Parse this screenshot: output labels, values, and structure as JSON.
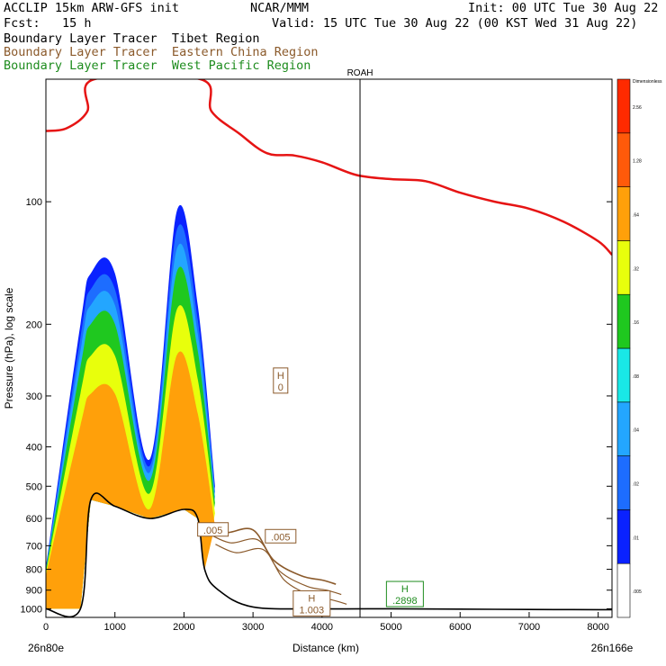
{
  "header": {
    "line1_left": "ACCLIP 15km ARW-GFS init",
    "line1_mid": "NCAR/MMM",
    "line1_right": "Init: 00 UTC Tue 30 Aug 22",
    "line2_left": "Fcst:   15 h",
    "line2_right": "Valid: 15 UTC Tue 30 Aug 22 (00 KST Wed 31 Aug 22)",
    "tracer_lines": [
      {
        "label": "Boundary Layer Tracer  Tibet Region",
        "color": "#000000"
      },
      {
        "label": "Boundary Layer Tracer  Eastern China Region",
        "color": "#8b5a2b"
      },
      {
        "label": "Boundary Layer Tracer  West Pacific Region",
        "color": "#1e8c1e"
      }
    ]
  },
  "chart_data": {
    "type": "heatmap",
    "xlabel": "Distance (km)",
    "ylabel": "Pressure (hPa), log scale",
    "xlim": [
      0,
      8200
    ],
    "ylim": [
      1050,
      50
    ],
    "y_scale": "log",
    "x_ticks": [
      0,
      1000,
      2000,
      3000,
      4000,
      5000,
      6000,
      7000,
      8000
    ],
    "y_ticks": [
      100,
      200,
      300,
      400,
      500,
      600,
      700,
      800,
      900,
      1000
    ],
    "x_endpoints": {
      "left": "26n80e",
      "right": "26n166e"
    },
    "reference_line": {
      "x": 4550,
      "label": "ROAH"
    },
    "colorbar": {
      "title": "Dimensionless",
      "levels": [
        ".005",
        ".01",
        ".02",
        ".04",
        ".08",
        ".16",
        ".32",
        ".64",
        "1.28",
        "2.56"
      ],
      "colors": [
        "#ffffff",
        "#0a22ff",
        "#1d6dff",
        "#23a6ff",
        "#19e8e6",
        "#1fc81f",
        "#e8ff0c",
        "#ffa00a",
        "#ff5a0a",
        "#ff2a00"
      ]
    },
    "series": [
      {
        "name": "Tibet Region",
        "type": "filled-contour",
        "color": "#ff8c00",
        "x": [
          0,
          500,
          650,
          1000,
          1500,
          1900,
          2200,
          2450
        ],
        "y_top": [
          790,
          200,
          150,
          150,
          430,
          105,
          180,
          500
        ]
      },
      {
        "type": "line",
        "color": "#e61414",
        "x": [
          0,
          300,
          600,
          700,
          2240,
          2400,
          2800,
          3200,
          3600,
          4000,
          4500,
          5000,
          5500,
          6000,
          6500,
          7000,
          7500,
          8000,
          8200
        ],
        "y": [
          67,
          66,
          60,
          50,
          50,
          60,
          68,
          76,
          77,
          80,
          86,
          88,
          89,
          95,
          100,
          104,
          112,
          125,
          135
        ]
      },
      {
        "type": "line",
        "color": "#000000",
        "x": [
          0,
          500,
          650,
          1000,
          1500,
          2000,
          2200,
          2300,
          2500,
          3000,
          4000,
          5000,
          6000,
          7000,
          8000,
          8200
        ],
        "y": [
          1000,
          1000,
          540,
          560,
          600,
          570,
          600,
          800,
          900,
          990,
          1000,
          1000,
          1002,
          1004,
          1005,
          1005
        ]
      },
      {
        "name": "Eastern China Region",
        "type": "contour",
        "color": "#8b5a2b",
        "x": [
          2300,
          2600,
          3000,
          3300,
          3700,
          4000,
          4200
        ],
        "y": [
          620,
          650,
          640,
          760,
          830,
          850,
          870
        ]
      }
    ],
    "annotations": [
      {
        "kind": "H",
        "value": "0",
        "x": 3400,
        "p": 275,
        "color": "#8b5a2b"
      },
      {
        "kind": "label",
        "value": ".005",
        "x": 2420,
        "p": 640,
        "color": "#8b5a2b"
      },
      {
        "kind": "label",
        "value": ".005",
        "x": 3400,
        "p": 665,
        "color": "#8b5a2b"
      },
      {
        "kind": "H",
        "value": "1.003",
        "x": 3850,
        "p": 970,
        "color": "#8b5a2b"
      },
      {
        "kind": "H",
        "value": ".2898",
        "x": 5200,
        "p": 920,
        "color": "#1e8c1e"
      }
    ]
  }
}
